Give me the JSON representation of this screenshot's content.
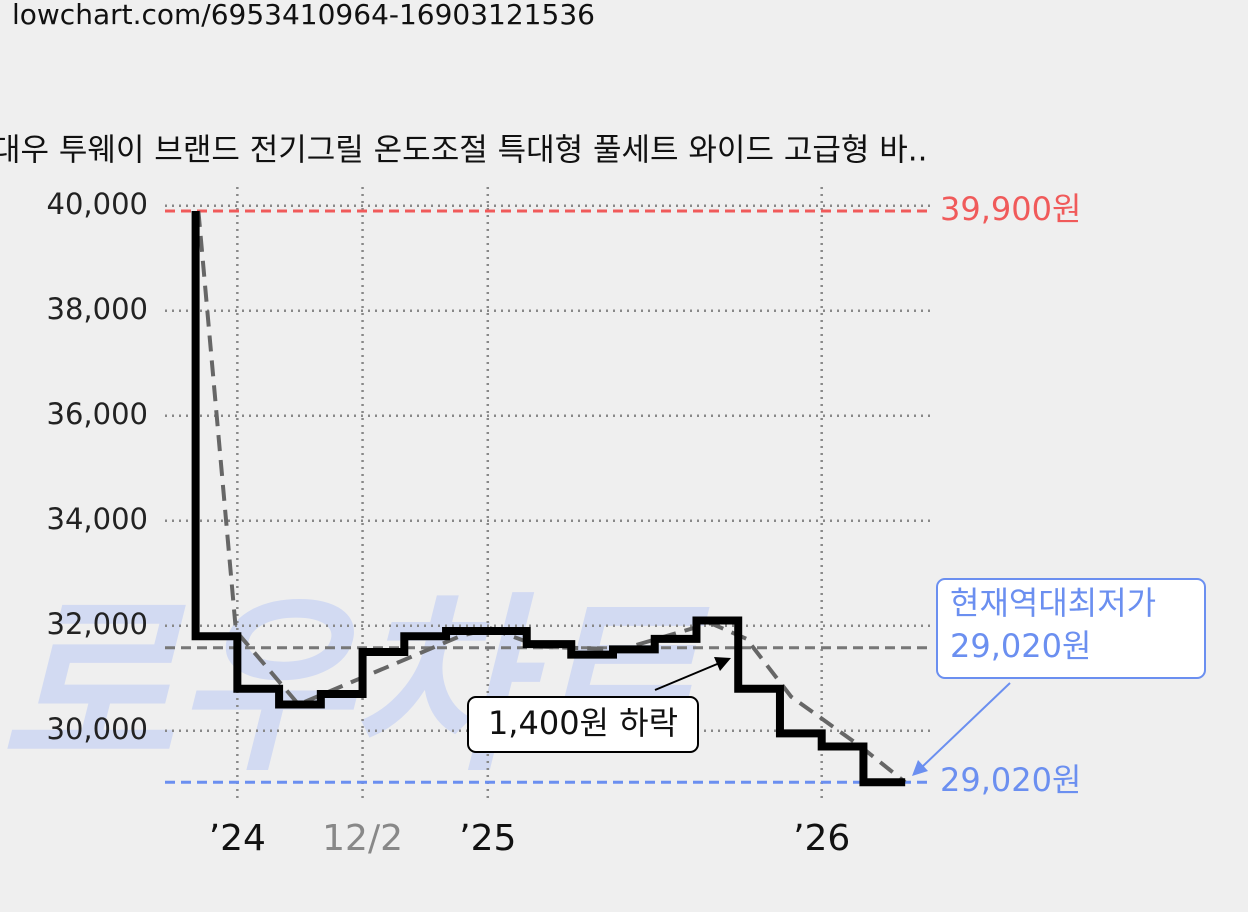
{
  "header": {
    "url": "lowchart.com/6953410964-16903121536"
  },
  "chart_data": {
    "type": "line",
    "title": "대우 투웨이 브랜드 전기그릴 온도조절 특대형 풀세트 와이드 고급형 바..",
    "watermark": "로우차트",
    "xlim": [
      0.4,
      28
    ],
    "ylim": [
      28700,
      40300
    ],
    "xticks": [
      {
        "value": 3,
        "label": "’24"
      },
      {
        "value": 7.5,
        "label": "12/2"
      },
      {
        "value": 12,
        "label": "’25"
      },
      {
        "value": 24,
        "label": "’26"
      }
    ],
    "yticks": [
      {
        "value": 30000,
        "label": "30,000"
      },
      {
        "value": 32000,
        "label": "32,000"
      },
      {
        "value": 34000,
        "label": "34,000"
      },
      {
        "value": 36000,
        "label": "36,000"
      },
      {
        "value": 38000,
        "label": "38,000"
      },
      {
        "value": 40000,
        "label": "40,000"
      }
    ],
    "grid": true,
    "series": [
      {
        "name": "price",
        "color": "#000000",
        "step": true,
        "x": [
          1.5,
          1.5,
          3,
          4.5,
          6,
          7.5,
          9,
          10.5,
          13.4,
          15,
          16.5,
          18,
          19.5,
          21,
          22.5,
          24,
          25.5,
          27
        ],
        "values": [
          39900,
          31800,
          30800,
          30500,
          30700,
          31500,
          31800,
          31900,
          31650,
          31450,
          31550,
          31750,
          32100,
          30800,
          29950,
          29700,
          29020,
          29020
        ]
      },
      {
        "name": "trend",
        "color": "#666666",
        "dashed": true,
        "x": [
          1.6,
          2.95,
          5.2,
          11,
          12.1,
          13.9,
          16.8,
          20,
          21.3,
          22.9,
          25.4,
          27
        ],
        "values": [
          39900,
          31900,
          30500,
          31800,
          31950,
          31600,
          31550,
          32050,
          31750,
          30650,
          29700,
          29020
        ]
      }
    ],
    "reference_lines": [
      {
        "value": 39900,
        "label": "39,900원",
        "color": "#f05a5a"
      },
      {
        "value": 29020,
        "label": "29,020원",
        "color": "#6b8ff0"
      },
      {
        "value": 31580,
        "color": "#777777"
      }
    ],
    "annotation": "1,400원 하락",
    "callout": [
      "현재역대최저가",
      "29,020원"
    ]
  }
}
